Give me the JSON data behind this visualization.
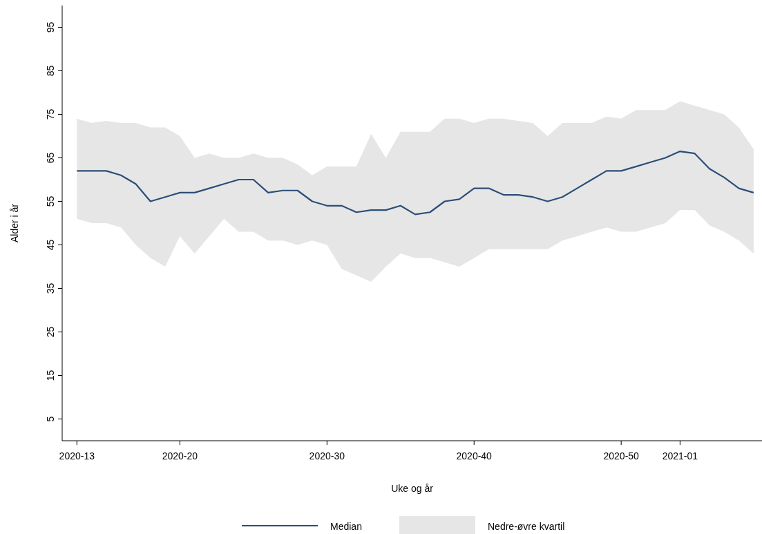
{
  "chart_data": {
    "type": "line",
    "xlabel": "Uke og år",
    "ylabel": "Alder i år",
    "annotations": [
      "Nedre-øvre kvartil"
    ],
    "x": [
      "2020-03-23",
      "2020-03-30",
      "2020-04-06",
      "2020-04-13",
      "2020-04-20",
      "2020-04-27",
      "2020-05-04",
      "2020-05-11",
      "2020-05-18",
      "2020-05-25",
      "2020-06-01",
      "2020-06-08",
      "2020-06-15",
      "2020-06-22",
      "2020-06-29",
      "2020-07-06",
      "2020-07-13",
      "2020-07-20",
      "2020-07-27",
      "2020-08-03",
      "2020-08-10",
      "2020-08-17",
      "2020-08-24",
      "2020-08-31",
      "2020-09-07",
      "2020-09-14",
      "2020-09-21",
      "2020-09-28",
      "2020-10-05",
      "2020-10-12",
      "2020-10-19",
      "2020-10-26",
      "2020-11-02",
      "2020-11-09",
      "2020-11-16",
      "2020-11-23",
      "2020-11-30",
      "2020-12-07",
      "2020-12-14",
      "2020-12-21",
      "2020-12-28",
      "2021-01-04",
      "2021-01-11",
      "2021-01-18",
      "2021-01-25",
      "2021-02-01",
      "2021-02-08"
    ],
    "xlim": [
      "2020-03-16",
      "2021-02-12"
    ],
    "xticks": [
      {
        "value": "2020-03-23",
        "label": "2020-13"
      },
      {
        "value": "2020-05-11",
        "label": "2020-20"
      },
      {
        "value": "2020-07-20",
        "label": "2020-30"
      },
      {
        "value": "2020-09-28",
        "label": "2020-40"
      },
      {
        "value": "2020-12-07",
        "label": "2020-50"
      },
      {
        "value": "2021-01-04",
        "label": "2021-01"
      }
    ],
    "ylim": [
      0,
      100
    ],
    "yticks": [
      5,
      15,
      25,
      35,
      45,
      55,
      65,
      75,
      85,
      95
    ],
    "grid": false,
    "legend": "bottom",
    "series": [
      {
        "name": "Median",
        "color": "#2a4e78",
        "values": [
          62,
          62,
          62,
          61,
          59,
          55,
          56,
          57,
          57,
          58,
          59,
          60,
          60,
          57,
          57.5,
          57.5,
          55,
          54,
          54,
          52.5,
          53,
          53,
          54,
          52,
          52.5,
          55,
          55.5,
          58,
          58,
          56.5,
          56.5,
          56,
          55,
          56,
          58,
          60,
          62,
          62,
          63,
          64,
          65,
          66.5,
          66,
          62.5,
          60.5,
          58,
          57
        ],
        "lower": [
          51,
          50,
          50,
          49,
          45,
          42,
          40,
          47,
          43,
          47,
          51,
          48,
          48,
          46,
          46,
          45,
          46,
          45,
          39.5,
          38,
          36.5,
          40,
          43,
          42,
          42,
          41,
          40,
          42,
          44,
          44,
          44,
          44,
          44,
          46,
          47,
          48,
          49,
          48,
          48,
          49,
          50,
          53,
          53,
          49.5,
          48,
          46,
          43
        ],
        "upper": [
          74,
          73,
          73.5,
          73,
          73,
          72,
          72,
          70,
          65,
          66,
          65,
          65,
          66,
          65,
          65,
          63.5,
          61,
          63,
          63,
          63,
          70.5,
          65,
          71,
          71,
          71,
          74,
          74,
          73,
          74,
          74,
          73.5,
          73,
          70,
          73,
          73,
          73,
          74.5,
          74,
          76,
          76,
          76,
          78,
          77,
          76,
          75,
          72,
          67
        ]
      }
    ]
  }
}
